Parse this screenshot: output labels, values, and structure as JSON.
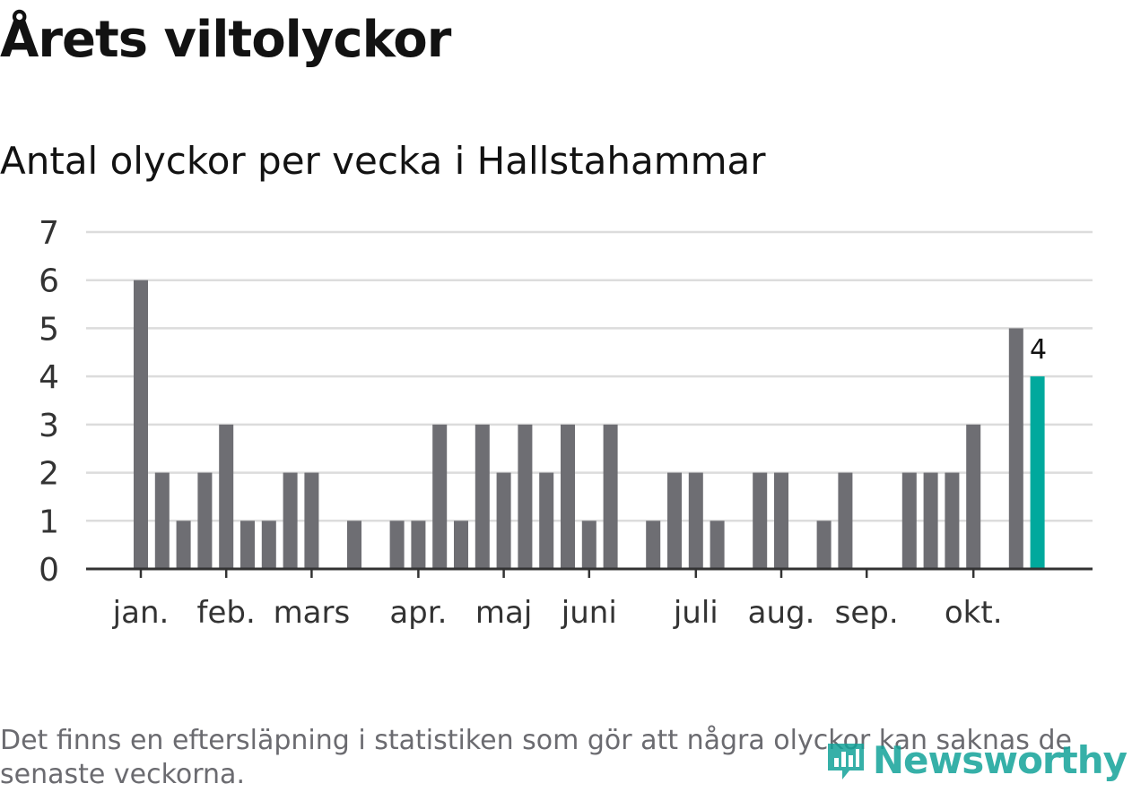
{
  "header": {
    "title": "Årets viltolyckor",
    "subtitle": "Antal olyckor per vecka i Hallstahammar"
  },
  "footer": {
    "note": "Det finns en eftersläpning i statistiken som gör att några olyckor kan saknas de senaste veckorna.",
    "brand": "Newsworthy"
  },
  "colors": {
    "bar": "#6e6e73",
    "highlight": "#00a99d",
    "grid": "#dcdcdc",
    "axis": "#333333",
    "text": "#121212"
  },
  "chart_data": {
    "type": "bar",
    "title": "Antal olyckor per vecka i Hallstahammar",
    "xlabel": "",
    "ylabel": "",
    "ylim": [
      0,
      7
    ],
    "yticks": [
      0,
      1,
      2,
      3,
      4,
      5,
      6,
      7
    ],
    "grid": true,
    "weeks": [
      1,
      2,
      3,
      4,
      5,
      6,
      7,
      8,
      9,
      10,
      11,
      12,
      13,
      14,
      15,
      16,
      17,
      18,
      19,
      20,
      21,
      22,
      23,
      24,
      25,
      26,
      27,
      28,
      29,
      30,
      31,
      32,
      33,
      34,
      35,
      36,
      37,
      38,
      39,
      40,
      41,
      42,
      43
    ],
    "values": [
      6,
      2,
      1,
      2,
      3,
      1,
      1,
      2,
      2,
      0,
      1,
      0,
      1,
      1,
      3,
      1,
      3,
      2,
      3,
      2,
      3,
      1,
      3,
      0,
      1,
      2,
      2,
      1,
      0,
      2,
      2,
      0,
      1,
      2,
      0,
      0,
      2,
      2,
      2,
      3,
      0,
      5,
      4
    ],
    "highlight_index": 42,
    "highlight_label": "4",
    "month_ticks": [
      {
        "label": "jan.",
        "week": 1
      },
      {
        "label": "feb.",
        "week": 5
      },
      {
        "label": "mars",
        "week": 9
      },
      {
        "label": "apr.",
        "week": 14
      },
      {
        "label": "maj",
        "week": 18
      },
      {
        "label": "juni",
        "week": 22
      },
      {
        "label": "juli",
        "week": 27
      },
      {
        "label": "aug.",
        "week": 31
      },
      {
        "label": "sep.",
        "week": 35
      },
      {
        "label": "okt.",
        "week": 40
      }
    ]
  }
}
